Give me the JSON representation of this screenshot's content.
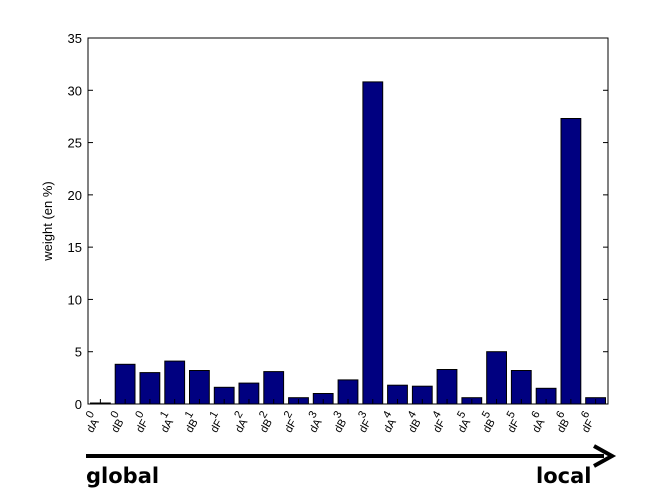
{
  "chart_data": {
    "type": "bar",
    "ylabel": "weight (en %)",
    "xlabel": "",
    "ylim": [
      0,
      35
    ],
    "yticks": [
      0,
      5,
      10,
      15,
      20,
      25,
      30,
      35
    ],
    "categories": [
      {
        "line1": "dA",
        "line2": "0"
      },
      {
        "line1": "dB",
        "line2": "0"
      },
      {
        "line1": "dF",
        "line2": "0"
      },
      {
        "line1": "dA",
        "line2": "1"
      },
      {
        "line1": "dB",
        "line2": "1"
      },
      {
        "line1": "dF",
        "line2": "1"
      },
      {
        "line1": "dA",
        "line2": "2"
      },
      {
        "line1": "dB",
        "line2": "2"
      },
      {
        "line1": "dF",
        "line2": "2"
      },
      {
        "line1": "dA",
        "line2": "3"
      },
      {
        "line1": "dB",
        "line2": "3"
      },
      {
        "line1": "dF",
        "line2": "3"
      },
      {
        "line1": "dA",
        "line2": "4"
      },
      {
        "line1": "dB",
        "line2": "4"
      },
      {
        "line1": "dF",
        "line2": "4"
      },
      {
        "line1": "dA",
        "line2": "5"
      },
      {
        "line1": "dB",
        "line2": "5"
      },
      {
        "line1": "dF",
        "line2": "5"
      },
      {
        "line1": "dA",
        "line2": "6"
      },
      {
        "line1": "dB",
        "line2": "6"
      },
      {
        "line1": "dF",
        "line2": "6"
      }
    ],
    "values": [
      0.1,
      3.8,
      3.0,
      4.1,
      3.2,
      1.6,
      2.0,
      3.1,
      0.6,
      1.0,
      2.3,
      30.8,
      1.8,
      1.7,
      3.3,
      0.6,
      5.0,
      3.2,
      1.5,
      27.3,
      0.6
    ],
    "bar_color": "#000080",
    "grid": false
  },
  "annotation": {
    "left_label": "global",
    "right_label": "local"
  }
}
